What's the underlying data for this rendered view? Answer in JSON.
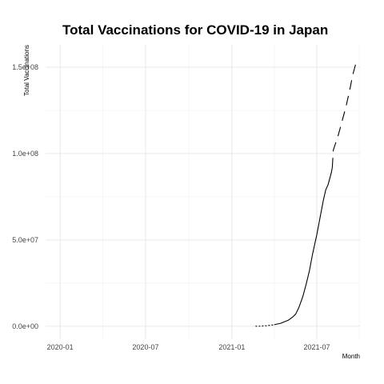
{
  "chart_data": {
    "type": "line",
    "title": "Total Vaccinations for COVID-19 in Japan",
    "xlabel": "Month",
    "ylabel": "Total Vaccinations",
    "x_ticks": [
      "2020-01",
      "2020-07",
      "2021-01",
      "2021-07"
    ],
    "y_ticks": [
      "0.0e+00",
      "5.0e+07",
      "1.0e+08",
      "1.5e+08"
    ],
    "x_range": [
      "2019-12-01",
      "2021-10-01"
    ],
    "ylim": [
      -7500000,
      163000000
    ],
    "grid": true,
    "legend": "none",
    "line_color": "#000000",
    "series": [
      {
        "points": [
          [
            "2021-02-17",
            0
          ],
          [
            "2021-03-01",
            30000
          ],
          [
            "2021-03-15",
            300000
          ],
          [
            "2021-04-01",
            900000
          ],
          [
            "2021-04-15",
            1700000
          ],
          [
            "2021-05-01",
            3500000
          ],
          [
            "2021-05-10",
            5200000
          ],
          [
            "2021-05-17",
            7000000
          ],
          [
            "2021-05-24",
            11000000
          ],
          [
            "2021-06-01",
            17000000
          ],
          [
            "2021-06-08",
            24000000
          ],
          [
            "2021-06-15",
            32000000
          ],
          [
            "2021-06-22",
            42000000
          ],
          [
            "2021-07-01",
            53000000
          ],
          [
            "2021-07-08",
            63000000
          ],
          [
            "2021-07-15",
            73000000
          ],
          [
            "2021-07-20",
            79000000
          ],
          [
            "2021-07-25",
            82000000
          ],
          [
            "2021-08-01",
            89000000
          ],
          [
            "2021-08-03",
            92000000
          ],
          [
            "2021-08-05",
            102000000
          ],
          [
            "2021-08-10",
            106000000
          ],
          [
            "2021-08-15",
            110000000
          ],
          [
            "2021-08-20",
            115000000
          ],
          [
            "2021-08-25",
            120000000
          ],
          [
            "2021-09-01",
            127000000
          ],
          [
            "2021-09-06",
            133000000
          ],
          [
            "2021-09-10",
            138000000
          ],
          [
            "2021-09-15",
            145000000
          ],
          [
            "2021-09-20",
            150000000
          ],
          [
            "2021-09-25",
            155000000
          ]
        ]
      }
    ]
  }
}
